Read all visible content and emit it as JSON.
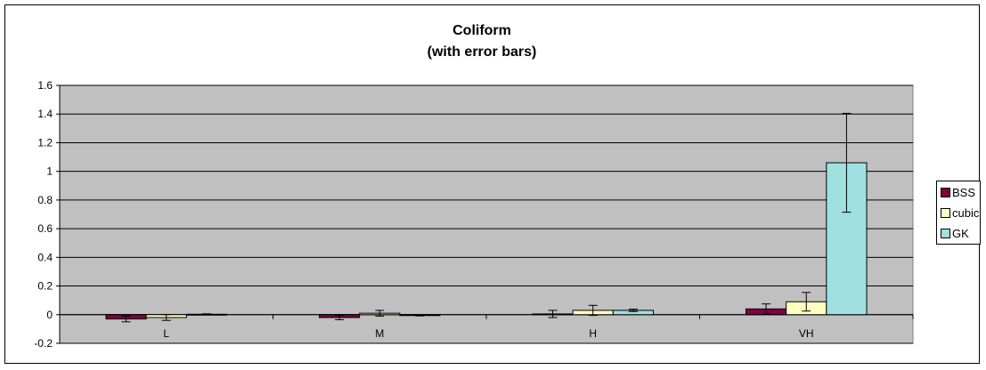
{
  "chart_data": {
    "type": "bar",
    "title": "Coliform",
    "subtitle": "(with error bars)",
    "xlabel": "",
    "ylabel": "",
    "categories": [
      "L",
      "M",
      "H",
      "VH"
    ],
    "ylim": [
      -0.2,
      1.6
    ],
    "yticks": [
      -0.2,
      0,
      0.2,
      0.4,
      0.6,
      0.8,
      1,
      1.2,
      1.4,
      1.6
    ],
    "ytick_labels": [
      "-0.2",
      "0",
      "0.2",
      "0.4",
      "0.6",
      "0.8",
      "1",
      "1.2",
      "1.4",
      "1.6"
    ],
    "grid": true,
    "legend_position": "right",
    "plot_background": "#c0c0c0",
    "series": [
      {
        "name": "BSS",
        "color": "#800040",
        "values": [
          -0.03,
          -0.02,
          0.005,
          0.04
        ],
        "errors": [
          0.02,
          0.015,
          0.025,
          0.035
        ]
      },
      {
        "name": "cubic",
        "color": "#ffffc0",
        "values": [
          -0.02,
          0.01,
          0.03,
          0.09
        ],
        "errors": [
          0.02,
          0.02,
          0.035,
          0.065
        ]
      },
      {
        "name": "GK",
        "color": "#a0e0e0",
        "values": [
          0.003,
          -0.005,
          0.03,
          1.06
        ],
        "errors": [
          0.003,
          0.004,
          0.008,
          0.345
        ]
      }
    ]
  }
}
